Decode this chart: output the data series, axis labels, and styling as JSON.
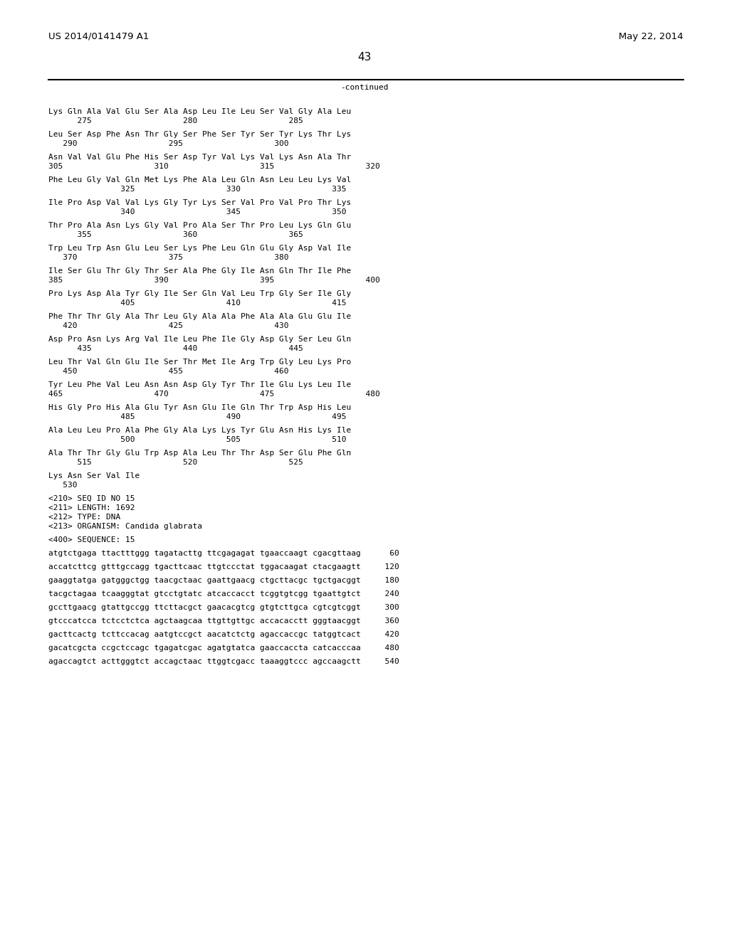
{
  "header_left": "US 2014/0141479 A1",
  "header_right": "May 22, 2014",
  "page_number": "43",
  "continued_label": "-continued",
  "background_color": "#ffffff",
  "text_color": "#000000",
  "font_size_header": 9.5,
  "font_size_body": 8.0,
  "font_size_page": 11,
  "sequence_lines": [
    "Lys Gln Ala Val Glu Ser Ala Asp Leu Ile Leu Ser Val Gly Ala Leu",
    "      275                   280                   285            ",
    "",
    "Leu Ser Asp Phe Asn Thr Gly Ser Phe Ser Tyr Ser Tyr Lys Thr Lys",
    "   290                   295                   300               ",
    "",
    "Asn Val Val Glu Phe His Ser Asp Tyr Val Lys Val Lys Asn Ala Thr",
    "305                   310                   315                   320",
    "",
    "Phe Leu Gly Val Gln Met Lys Phe Ala Leu Gln Asn Leu Leu Lys Val",
    "               325                   330                   335   ",
    "",
    "Ile Pro Asp Val Val Lys Gly Tyr Lys Ser Val Pro Val Pro Thr Lys",
    "               340                   345                   350   ",
    "",
    "Thr Pro Ala Asn Lys Gly Val Pro Ala Ser Thr Pro Leu Lys Gln Glu",
    "      355                   360                   365            ",
    "",
    "Trp Leu Trp Asn Glu Leu Ser Lys Phe Leu Gln Glu Gly Asp Val Ile",
    "   370                   375                   380               ",
    "",
    "Ile Ser Glu Thr Gly Thr Ser Ala Phe Gly Ile Asn Gln Thr Ile Phe",
    "385                   390                   395                   400",
    "",
    "Pro Lys Asp Ala Tyr Gly Ile Ser Gln Val Leu Trp Gly Ser Ile Gly",
    "               405                   410                   415   ",
    "",
    "Phe Thr Thr Gly Ala Thr Leu Gly Ala Ala Phe Ala Ala Glu Glu Ile",
    "   420                   425                   430               ",
    "",
    "Asp Pro Asn Lys Arg Val Ile Leu Phe Ile Gly Asp Gly Ser Leu Gln",
    "      435                   440                   445            ",
    "",
    "Leu Thr Val Gln Glu Ile Ser Thr Met Ile Arg Trp Gly Leu Lys Pro",
    "   450                   455                   460               ",
    "",
    "Tyr Leu Phe Val Leu Asn Asn Asp Gly Tyr Thr Ile Glu Lys Leu Ile",
    "465                   470                   475                   480",
    "",
    "His Gly Pro His Ala Glu Tyr Asn Glu Ile Gln Thr Trp Asp His Leu",
    "               485                   490                   495   ",
    "",
    "Ala Leu Leu Pro Ala Phe Gly Ala Lys Lys Tyr Glu Asn His Lys Ile",
    "               500                   505                   510   ",
    "",
    "Ala Thr Thr Gly Glu Trp Asp Ala Leu Thr Thr Asp Ser Glu Phe Gln",
    "      515                   520                   525            ",
    "",
    "Lys Asn Ser Val Ile",
    "   530              ",
    "",
    "<210> SEQ ID NO 15",
    "<211> LENGTH: 1692",
    "<212> TYPE: DNA",
    "<213> ORGANISM: Candida glabrata",
    "",
    "<400> SEQUENCE: 15",
    "",
    "atgtctgaga ttactttggg tagatacttg ttcgagagat tgaaccaagt cgacgttaag      60",
    "",
    "accatcttcg gtttgccagg tgacttcaac ttgtccctat tggacaagat ctacgaagtt     120",
    "",
    "gaaggtatga gatgggctgg taacgctaac gaattgaacg ctgcttacgc tgctgacggt     180",
    "",
    "tacgctagaa tcaagggtat gtcctgtatc atcaccacct tcggtgtcgg tgaattgtct     240",
    "",
    "gccttgaacg gtattgccgg ttcttacgct gaacacgtcg gtgtcttgca cgtcgtcggt     300",
    "",
    "gtcccatcca tctcctctca agctaagcaa ttgttgttgc accacacctt gggtaacggt     360",
    "",
    "gacttcactg tcttccacag aatgtccgct aacatctctg agaccaccgc tatggtcact     420",
    "",
    "gacatcgcta ccgctccagc tgagatcgac agatgtatca gaaccaccta catcacccaa     480",
    "",
    "agaccagtct acttgggtct accagctaac ttggtcgacc taaaggtccc agccaagctt     540"
  ]
}
